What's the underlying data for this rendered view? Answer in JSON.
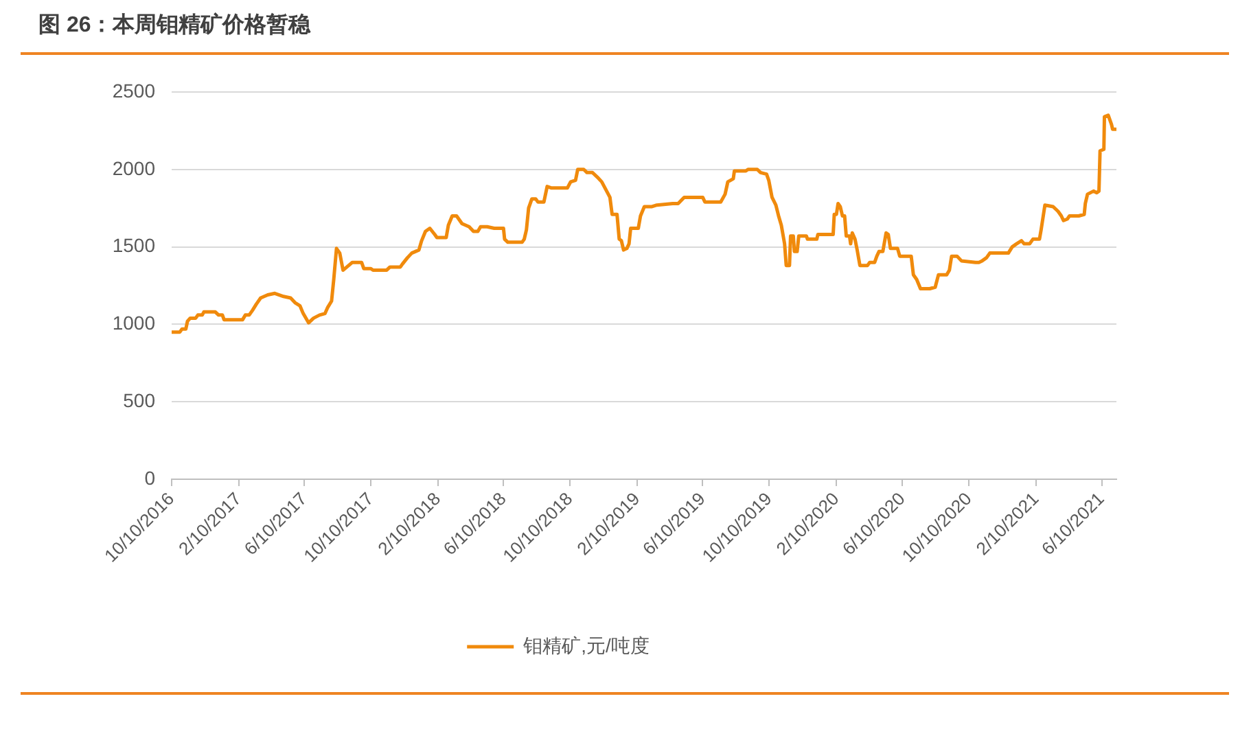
{
  "chart_data": {
    "type": "line",
    "title": "图 26：本周钼精矿价格暂稳",
    "x": [
      "2016-10-10",
      "2016-10-25",
      "2016-10-29",
      "2016-11-05",
      "2016-11-08",
      "2016-11-13",
      "2016-11-23",
      "2016-11-27",
      "2016-12-05",
      "2016-12-08",
      "2016-12-29",
      "2017-01-04",
      "2017-01-11",
      "2017-01-14",
      "2017-02-17",
      "2017-02-22",
      "2017-03-01",
      "2017-03-07",
      "2017-03-14",
      "2017-03-22",
      "2017-04-04",
      "2017-04-17",
      "2017-04-25",
      "2017-05-03",
      "2017-05-16",
      "2017-05-24",
      "2017-06-02",
      "2017-06-08",
      "2017-06-18",
      "2017-06-27",
      "2017-07-08",
      "2017-07-18",
      "2017-07-23",
      "2017-07-30",
      "2017-08-03",
      "2017-08-08",
      "2017-08-14",
      "2017-08-20",
      "2017-08-27",
      "2017-09-06",
      "2017-09-23",
      "2017-09-27",
      "2017-10-10",
      "2017-10-14",
      "2017-11-08",
      "2017-11-14",
      "2017-12-03",
      "2017-12-07",
      "2017-12-16",
      "2017-12-24",
      "2018-01-06",
      "2018-01-11",
      "2018-01-18",
      "2018-01-26",
      "2018-02-04",
      "2018-02-08",
      "2018-02-25",
      "2018-03-01",
      "2018-03-08",
      "2018-03-16",
      "2018-03-26",
      "2018-04-08",
      "2018-04-16",
      "2018-04-24",
      "2018-04-29",
      "2018-05-11",
      "2018-05-24",
      "2018-06-10",
      "2018-06-12",
      "2018-06-18",
      "2018-07-14",
      "2018-07-18",
      "2018-07-22",
      "2018-07-26",
      "2018-08-01",
      "2018-08-08",
      "2018-08-12",
      "2018-08-23",
      "2018-08-29",
      "2018-09-06",
      "2018-10-05",
      "2018-10-11",
      "2018-10-20",
      "2018-10-24",
      "2018-11-04",
      "2018-11-10",
      "2018-11-20",
      "2018-11-29",
      "2018-12-07",
      "2018-12-16",
      "2018-12-22",
      "2018-12-26",
      "2019-01-04",
      "2019-01-08",
      "2019-01-12",
      "2019-01-16",
      "2019-01-22",
      "2019-01-26",
      "2019-01-29",
      "2019-02-12",
      "2019-02-16",
      "2019-02-23",
      "2019-03-09",
      "2019-03-18",
      "2019-04-16",
      "2019-04-26",
      "2019-05-07",
      "2019-06-10",
      "2019-06-14",
      "2019-07-13",
      "2019-07-21",
      "2019-07-26",
      "2019-08-05",
      "2019-08-07",
      "2019-08-28",
      "2019-09-01",
      "2019-09-18",
      "2019-09-24",
      "2019-10-05",
      "2019-10-09",
      "2019-10-15",
      "2019-10-22",
      "2019-10-27",
      "2019-11-01",
      "2019-11-07",
      "2019-11-10",
      "2019-11-16",
      "2019-11-18",
      "2019-11-23",
      "2019-11-25",
      "2019-11-30",
      "2019-12-03",
      "2019-12-17",
      "2019-12-19",
      "2020-01-05",
      "2020-01-07",
      "2020-02-04",
      "2020-02-06",
      "2020-02-10",
      "2020-02-13",
      "2020-02-17",
      "2020-02-21",
      "2020-02-25",
      "2020-02-28",
      "2020-03-05",
      "2020-03-07",
      "2020-03-10",
      "2020-03-15",
      "2020-03-19",
      "2020-03-24",
      "2020-04-07",
      "2020-04-11",
      "2020-04-20",
      "2020-04-24",
      "2020-04-28",
      "2020-05-05",
      "2020-05-11",
      "2020-05-15",
      "2020-05-19",
      "2020-06-01",
      "2020-06-05",
      "2020-06-26",
      "2020-06-30",
      "2020-07-06",
      "2020-07-13",
      "2020-07-30",
      "2020-08-09",
      "2020-08-15",
      "2020-08-30",
      "2020-09-04",
      "2020-09-08",
      "2020-09-18",
      "2020-09-26",
      "2020-10-22",
      "2020-10-28",
      "2020-11-03",
      "2020-11-11",
      "2020-11-17",
      "2020-12-21",
      "2020-12-28",
      "2021-01-05",
      "2021-01-14",
      "2021-01-19",
      "2021-01-29",
      "2021-02-04",
      "2021-02-16",
      "2021-02-19",
      "2021-02-26",
      "2021-03-13",
      "2021-03-22",
      "2021-03-28",
      "2021-04-01",
      "2021-04-08",
      "2021-04-12",
      "2021-04-18",
      "2021-04-29",
      "2021-05-09",
      "2021-05-11",
      "2021-05-15",
      "2021-05-26",
      "2021-06-01",
      "2021-06-05",
      "2021-06-07",
      "2021-06-14",
      "2021-06-15",
      "2021-06-22",
      "2021-06-28",
      "2021-06-30",
      "2021-07-07"
    ],
    "series": [
      {
        "name": "钼精矿,元/吨度",
        "color": "#f08a0c",
        "values": [
          950,
          950,
          970,
          970,
          1020,
          1040,
          1040,
          1060,
          1060,
          1080,
          1080,
          1060,
          1060,
          1030,
          1030,
          1060,
          1060,
          1090,
          1130,
          1170,
          1190,
          1200,
          1190,
          1180,
          1170,
          1140,
          1120,
          1070,
          1010,
          1040,
          1060,
          1070,
          1110,
          1150,
          1290,
          1490,
          1460,
          1350,
          1370,
          1400,
          1400,
          1360,
          1360,
          1350,
          1350,
          1370,
          1370,
          1390,
          1430,
          1460,
          1480,
          1540,
          1600,
          1620,
          1580,
          1560,
          1560,
          1640,
          1700,
          1700,
          1650,
          1630,
          1600,
          1600,
          1630,
          1630,
          1620,
          1620,
          1550,
          1530,
          1530,
          1550,
          1610,
          1750,
          1810,
          1810,
          1790,
          1790,
          1890,
          1880,
          1880,
          1920,
          1930,
          2000,
          2000,
          1980,
          1980,
          1950,
          1920,
          1860,
          1820,
          1710,
          1710,
          1550,
          1540,
          1480,
          1490,
          1520,
          1620,
          1620,
          1700,
          1760,
          1760,
          1770,
          1780,
          1780,
          1820,
          1820,
          1790,
          1790,
          1840,
          1920,
          1940,
          1990,
          1990,
          2000,
          2000,
          1980,
          1970,
          1930,
          1820,
          1770,
          1700,
          1640,
          1520,
          1380,
          1380,
          1570,
          1570,
          1470,
          1470,
          1570,
          1570,
          1550,
          1550,
          1580,
          1580,
          1710,
          1710,
          1780,
          1760,
          1700,
          1700,
          1570,
          1570,
          1520,
          1590,
          1550,
          1480,
          1380,
          1380,
          1400,
          1400,
          1440,
          1470,
          1470,
          1590,
          1580,
          1490,
          1490,
          1440,
          1440,
          1320,
          1290,
          1230,
          1230,
          1240,
          1320,
          1320,
          1350,
          1440,
          1440,
          1410,
          1400,
          1400,
          1410,
          1430,
          1460,
          1460,
          1500,
          1520,
          1540,
          1520,
          1520,
          1550,
          1550,
          1610,
          1770,
          1760,
          1730,
          1700,
          1670,
          1680,
          1700,
          1700,
          1700,
          1710,
          1780,
          1840,
          1860,
          1850,
          1860,
          2120,
          2130,
          2340,
          2350,
          2290,
          2260,
          2260
        ]
      }
    ],
    "xlim": [
      "2016-10-10",
      "2021-07-07"
    ],
    "xticks": [
      {
        "value": "2016-10-10",
        "label": "10/10/2016"
      },
      {
        "value": "2017-02-10",
        "label": "2/10/2017"
      },
      {
        "value": "2017-06-10",
        "label": "6/10/2017"
      },
      {
        "value": "2017-10-10",
        "label": "10/10/2017"
      },
      {
        "value": "2018-02-10",
        "label": "2/10/2018"
      },
      {
        "value": "2018-06-10",
        "label": "6/10/2018"
      },
      {
        "value": "2018-10-10",
        "label": "10/10/2018"
      },
      {
        "value": "2019-02-10",
        "label": "2/10/2019"
      },
      {
        "value": "2019-06-10",
        "label": "6/10/2019"
      },
      {
        "value": "2019-10-10",
        "label": "10/10/2019"
      },
      {
        "value": "2020-02-10",
        "label": "2/10/2020"
      },
      {
        "value": "2020-06-10",
        "label": "6/10/2020"
      },
      {
        "value": "2020-10-10",
        "label": "10/10/2020"
      },
      {
        "value": "2021-02-10",
        "label": "2/10/2021"
      },
      {
        "value": "2021-06-10",
        "label": "6/10/2021"
      }
    ],
    "ylim": [
      0,
      2500
    ],
    "yticks": [
      0,
      500,
      1000,
      1500,
      2000,
      2500
    ],
    "grid": "y",
    "legend": "bottom"
  }
}
